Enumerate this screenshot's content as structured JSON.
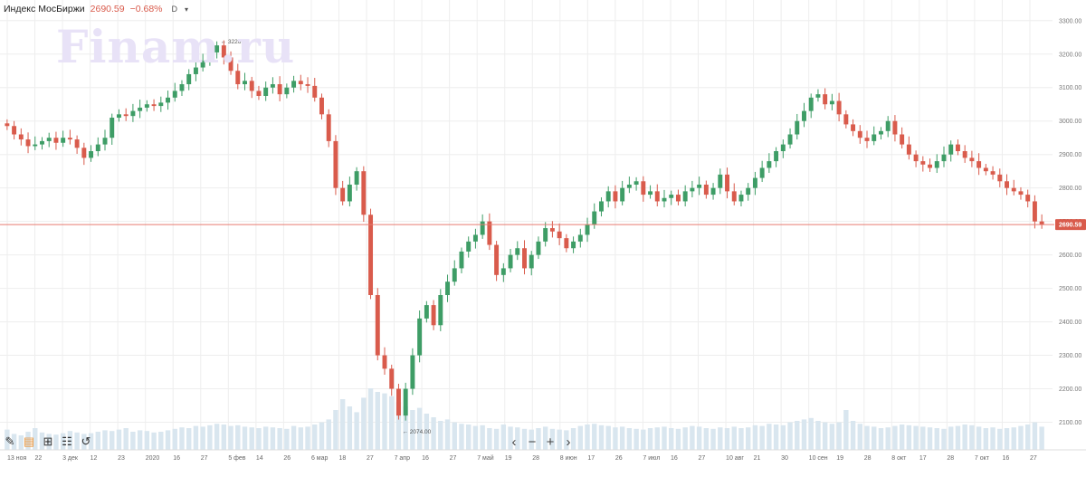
{
  "header": {
    "title": "Индекс МосБиржи",
    "price": "2690.59",
    "change": "−0.68%",
    "interval": "D",
    "dropdown_icon": "chevron-down-icon"
  },
  "watermark": "Finam.ru",
  "toolbar": {
    "tools": [
      {
        "icon": "pencil-icon",
        "glyph": "✎"
      },
      {
        "icon": "template-icon",
        "glyph": "▤"
      },
      {
        "icon": "add-indicator-icon",
        "glyph": "⊞"
      },
      {
        "icon": "settings-sliders-icon",
        "glyph": "☷"
      },
      {
        "icon": "reset-icon",
        "glyph": "↺"
      }
    ]
  },
  "navigation": {
    "buttons": [
      {
        "icon": "scroll-left-icon",
        "glyph": "‹"
      },
      {
        "icon": "zoom-out-icon",
        "glyph": "−"
      },
      {
        "icon": "zoom-in-icon",
        "glyph": "+"
      },
      {
        "icon": "scroll-right-icon",
        "glyph": "›"
      }
    ]
  },
  "colors": {
    "up": "#3e9d66",
    "down": "#d95b4c",
    "volume": "#d9e6ef",
    "grid": "#eeeeee",
    "price_line": "#e77b70"
  },
  "chart_data": {
    "type": "candlestick",
    "instrument": "Индекс МосБиржи",
    "ylim": [
      2050,
      3340
    ],
    "y_ticks": [
      "2100.00",
      "2200.00",
      "2300.00",
      "2400.00",
      "2500.00",
      "2600.00",
      "2700.00",
      "2800.00",
      "2900.00",
      "3000.00",
      "3100.00",
      "3200.00",
      "3300.00"
    ],
    "x_ticks": [
      "13 ноя",
      "22",
      "3 дек",
      "12",
      "23",
      "2020",
      "16",
      "27",
      "5 фев",
      "14",
      "26",
      "6 мар",
      "18",
      "27",
      "7 апр",
      "16",
      "27",
      "7 май",
      "19",
      "28",
      "8 июн",
      "17",
      "26",
      "7 июл",
      "16",
      "27",
      "10 авг",
      "21",
      "30",
      "10 сен",
      "19",
      "28",
      "8 окт",
      "17",
      "28",
      "7 окт",
      "16",
      "27"
    ],
    "current_price_label": "2690.59",
    "annotations": {
      "max": "3226.59",
      "min": "2074.00"
    },
    "closes": [
      2985,
      2960,
      2945,
      2925,
      2930,
      2940,
      2950,
      2935,
      2950,
      2945,
      2920,
      2890,
      2910,
      2930,
      2950,
      3010,
      3020,
      3015,
      3030,
      3040,
      3050,
      3045,
      3055,
      3070,
      3090,
      3110,
      3140,
      3160,
      3180,
      3205,
      3226,
      3190,
      3150,
      3110,
      3120,
      3090,
      3075,
      3100,
      3110,
      3080,
      3100,
      3120,
      3110,
      3105,
      3070,
      3020,
      2940,
      2800,
      2760,
      2810,
      2850,
      2720,
      2480,
      2300,
      2260,
      2200,
      2120,
      2200,
      2300,
      2410,
      2450,
      2390,
      2480,
      2520,
      2560,
      2610,
      2640,
      2660,
      2700,
      2630,
      2540,
      2560,
      2600,
      2620,
      2560,
      2600,
      2640,
      2680,
      2670,
      2650,
      2620,
      2640,
      2660,
      2690,
      2730,
      2760,
      2790,
      2760,
      2800,
      2810,
      2820,
      2780,
      2790,
      2760,
      2770,
      2780,
      2760,
      2790,
      2800,
      2810,
      2780,
      2800,
      2840,
      2790,
      2760,
      2780,
      2800,
      2830,
      2860,
      2880,
      2910,
      2930,
      2960,
      3000,
      3030,
      3070,
      3080,
      3050,
      3060,
      3020,
      2990,
      2970,
      2950,
      2940,
      2960,
      2970,
      3000,
      2960,
      2930,
      2900,
      2880,
      2870,
      2860,
      2880,
      2900,
      2930,
      2910,
      2890,
      2880,
      2860,
      2850,
      2840,
      2820,
      2800,
      2790,
      2780,
      2760,
      2700,
      2690
    ],
    "volumes": [
      0.28,
      0.22,
      0.2,
      0.25,
      0.3,
      0.24,
      0.22,
      0.21,
      0.23,
      0.26,
      0.24,
      0.22,
      0.23,
      0.25,
      0.27,
      0.26,
      0.28,
      0.3,
      0.25,
      0.27,
      0.26,
      0.24,
      0.25,
      0.27,
      0.29,
      0.31,
      0.3,
      0.33,
      0.32,
      0.34,
      0.36,
      0.35,
      0.33,
      0.34,
      0.32,
      0.31,
      0.3,
      0.32,
      0.31,
      0.3,
      0.29,
      0.33,
      0.31,
      0.32,
      0.35,
      0.38,
      0.42,
      0.55,
      0.7,
      0.6,
      0.52,
      0.72,
      0.85,
      0.8,
      0.78,
      0.74,
      0.66,
      0.6,
      0.55,
      0.58,
      0.5,
      0.45,
      0.4,
      0.42,
      0.38,
      0.36,
      0.35,
      0.33,
      0.34,
      0.3,
      0.29,
      0.35,
      0.32,
      0.31,
      0.29,
      0.28,
      0.3,
      0.32,
      0.29,
      0.28,
      0.27,
      0.3,
      0.33,
      0.35,
      0.36,
      0.34,
      0.33,
      0.31,
      0.32,
      0.3,
      0.29,
      0.28,
      0.3,
      0.31,
      0.32,
      0.3,
      0.29,
      0.31,
      0.33,
      0.32,
      0.3,
      0.29,
      0.31,
      0.3,
      0.32,
      0.3,
      0.31,
      0.34,
      0.33,
      0.36,
      0.35,
      0.34,
      0.38,
      0.4,
      0.42,
      0.44,
      0.4,
      0.38,
      0.36,
      0.38,
      0.55,
      0.4,
      0.36,
      0.33,
      0.32,
      0.3,
      0.31,
      0.33,
      0.35,
      0.34,
      0.33,
      0.32,
      0.31,
      0.3,
      0.29,
      0.32,
      0.33,
      0.35,
      0.34,
      0.32,
      0.3,
      0.31,
      0.29,
      0.3,
      0.31,
      0.33,
      0.35,
      0.38,
      0.32
    ]
  }
}
